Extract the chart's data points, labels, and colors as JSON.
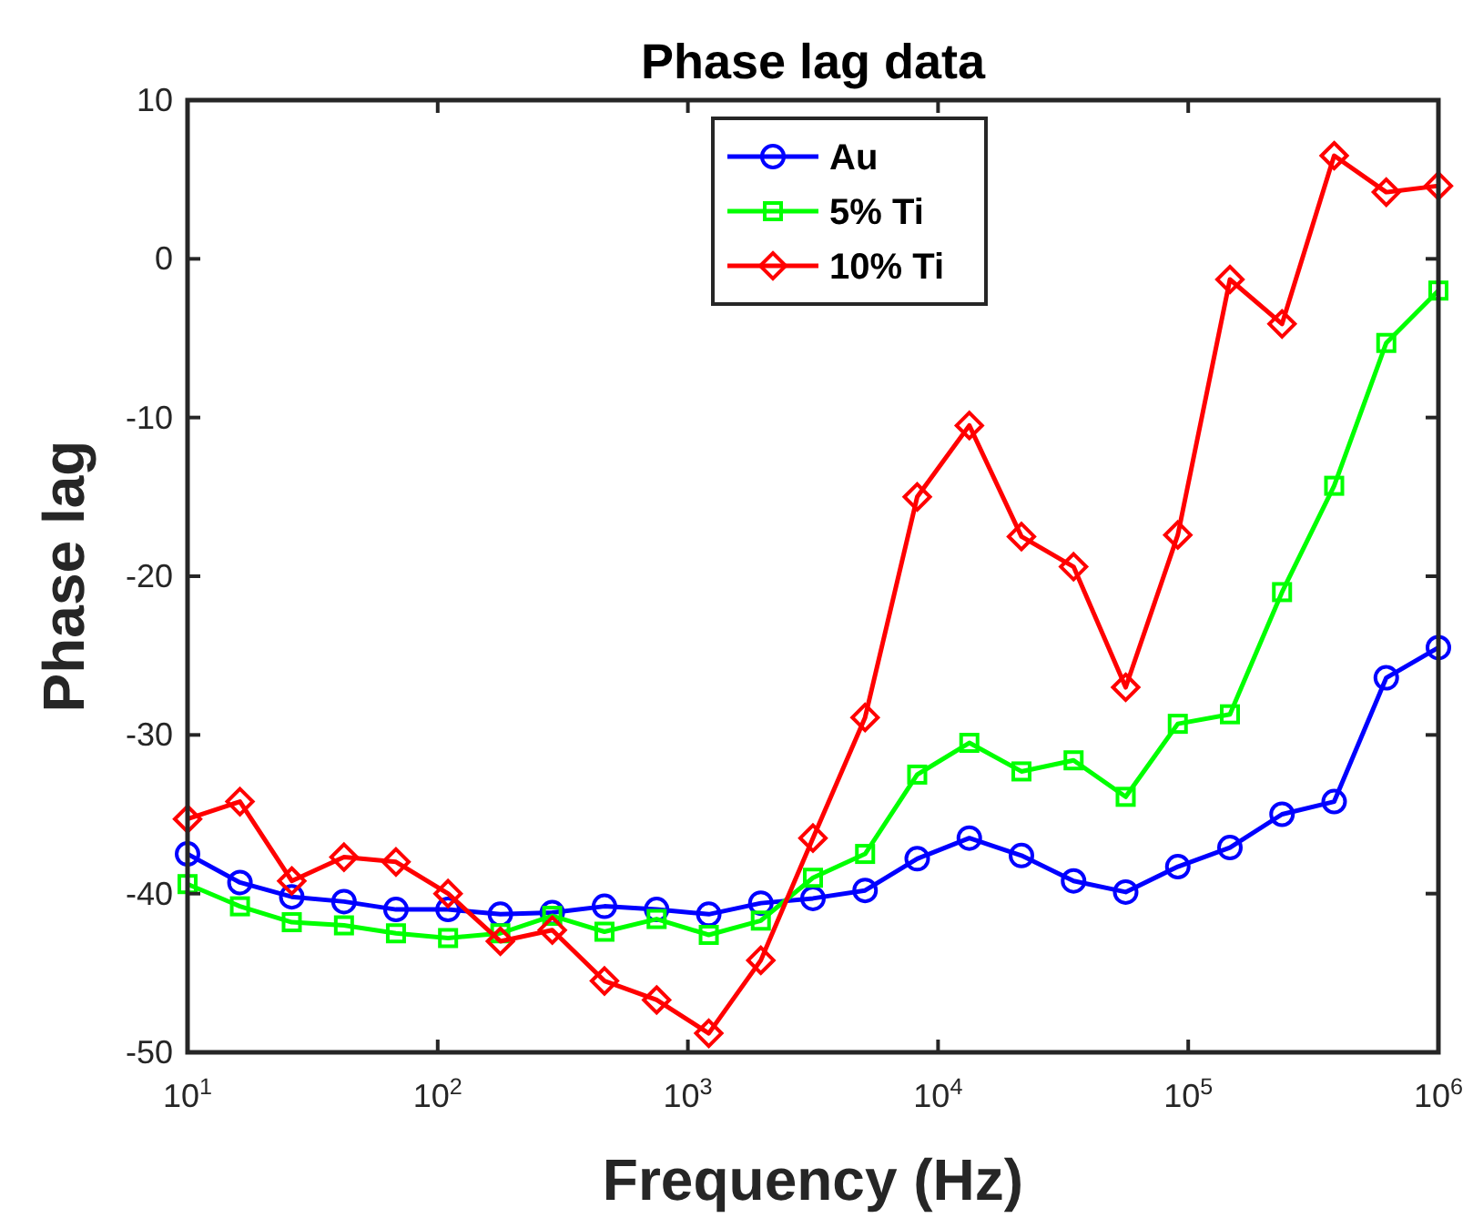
{
  "chart_data": {
    "type": "line",
    "title": "Phase lag data",
    "xlabel": "Frequency (Hz)",
    "ylabel": "Phase lag",
    "log": "x",
    "x": [
      10,
      16.2,
      26.1,
      42.2,
      68.1,
      110,
      178,
      287,
      464,
      750,
      1212,
      1957,
      3162,
      5109,
      8254,
      13335,
      21544,
      34807,
      56234,
      90852,
      146780,
      237137,
      383119,
      618966,
      1000000
    ],
    "xlim": [
      10,
      1000000
    ],
    "xticks": [
      {
        "value": 10,
        "label": "10$^{1}$"
      },
      {
        "value": 100,
        "label": "10$^{2}$"
      },
      {
        "value": 1000,
        "label": "10$^{3}$"
      },
      {
        "value": 10000,
        "label": "10$^{4}$"
      },
      {
        "value": 100000,
        "label": "10$^{5}$"
      },
      {
        "value": 1000000,
        "label": "10$^{6}$"
      }
    ],
    "ylim": [
      -50,
      10
    ],
    "yticks": [
      -50,
      -40,
      -30,
      -20,
      -10,
      0,
      10
    ],
    "grid": false,
    "legend": "top",
    "line_style": "solid",
    "series": [
      {
        "name": "Au",
        "color": "#0000ff",
        "marker": "circle",
        "values": [
          -37.5,
          -39.3,
          -40.2,
          -40.5,
          -41,
          -41,
          -41.3,
          -41.2,
          -40.8,
          -41,
          -41.3,
          -40.6,
          -40.3,
          -39.8,
          -37.8,
          -36.5,
          -37.6,
          -39.2,
          -39.9,
          -38.3,
          -37.1,
          -35,
          -34.2,
          -26.4,
          -24.5
        ]
      },
      {
        "name": "5% Ti",
        "color": "#00ff00",
        "marker": "square",
        "values": [
          -39.4,
          -40.8,
          -41.8,
          -42,
          -42.5,
          -42.8,
          -42.5,
          -41.4,
          -42.4,
          -41.6,
          -42.6,
          -41.7,
          -39,
          -37.5,
          -32.5,
          -30.5,
          -32.3,
          -31.6,
          -33.9,
          -29.3,
          -28.7,
          -21,
          -14.3,
          -5.3,
          -2
        ]
      },
      {
        "name": "10% Ti",
        "color": "#ff0000",
        "marker": "diamond",
        "values": [
          -35.3,
          -34.2,
          -39.2,
          -37.7,
          -38,
          -40,
          -43,
          -42.3,
          -45.5,
          -46.7,
          -48.8,
          -44.2,
          -36.5,
          -28.9,
          -15,
          -10.5,
          -17.5,
          -19.4,
          -27,
          -17.4,
          -1.3,
          -4.1,
          6.5,
          4.2,
          4.6
        ]
      }
    ]
  }
}
